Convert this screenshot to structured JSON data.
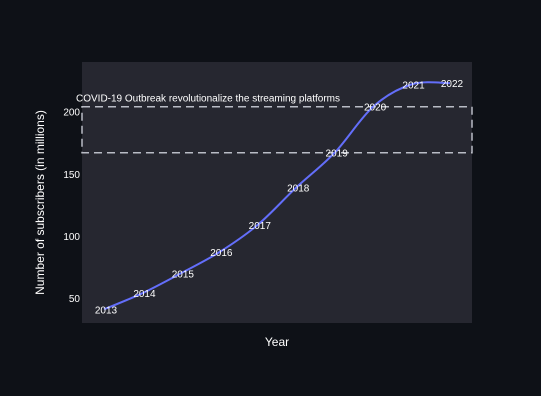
{
  "colors": {
    "page_bg": "#0e1117",
    "plot_bg": "#262730",
    "line": "#636efa",
    "text": "#ffffff",
    "axis_text": "#ffffff",
    "annotation_box": "#b9bcc6"
  },
  "chart_data": {
    "type": "line",
    "title": "",
    "xlabel": "Year",
    "ylabel": "Number of subscribers (in millions)",
    "ylim": [
      30,
      240
    ],
    "yticks": [
      50,
      100,
      150,
      200
    ],
    "grid": false,
    "legend": "none",
    "series": [
      {
        "x": [
          "2013",
          "2014",
          "2015",
          "2016",
          "2017",
          "2018",
          "2019",
          "2020",
          "2021",
          "2022"
        ],
        "values": [
          41,
          54,
          70,
          87,
          109,
          139,
          167,
          204,
          222,
          223
        ],
        "point_labels": [
          "2013",
          "2014",
          "2015",
          "2016",
          "2017",
          "2018",
          "2019",
          "2020",
          "2021",
          "2022"
        ]
      }
    ],
    "annotations": [
      {
        "text": "COVID-19 Outbreak revolutionalize the streaming platforms",
        "y_range": [
          167,
          204
        ],
        "style": "dashed-box"
      }
    ]
  }
}
